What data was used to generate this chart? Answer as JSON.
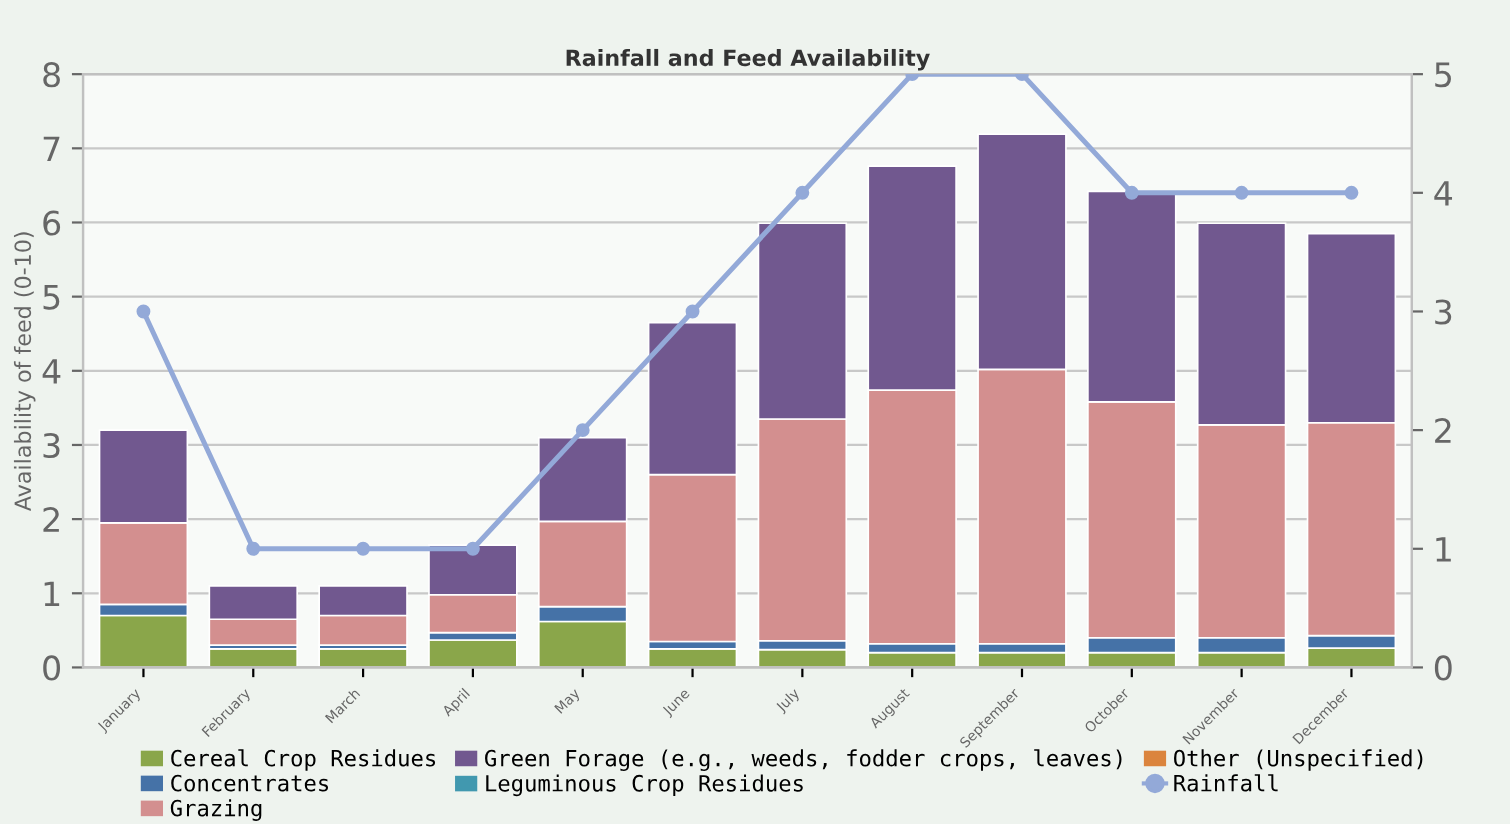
{
  "chart_data": {
    "type": "bar",
    "title": "Rainfall and Feed Availability",
    "ylabel": "Availability of feed (0-10)",
    "categories": [
      "January",
      "February",
      "March",
      "April",
      "May",
      "June",
      "July",
      "August",
      "September",
      "October",
      "November",
      "December"
    ],
    "stacked": true,
    "series": [
      {
        "name": "Cereal Crop Residues",
        "color": "#8aa64a",
        "values": [
          0.7,
          0.25,
          0.25,
          0.37,
          0.62,
          0.25,
          0.24,
          0.2,
          0.2,
          0.2,
          0.2,
          0.26
        ]
      },
      {
        "name": "Concentrates",
        "color": "#4572a7",
        "values": [
          0.15,
          0.05,
          0.05,
          0.1,
          0.2,
          0.1,
          0.12,
          0.12,
          0.12,
          0.2,
          0.2,
          0.17
        ]
      },
      {
        "name": "Grazing",
        "color": "#d38f8f",
        "values": [
          1.1,
          0.35,
          0.4,
          0.51,
          1.15,
          2.25,
          2.99,
          3.42,
          3.7,
          3.18,
          2.87,
          2.87
        ]
      },
      {
        "name": "Green Forage (e.g., weeds, fodder crops, leaves)",
        "color": "#71588f",
        "values": [
          1.25,
          0.45,
          0.4,
          0.67,
          1.13,
          2.05,
          2.64,
          3.02,
          3.17,
          2.84,
          2.72,
          2.55
        ]
      },
      {
        "name": "Leguminous Crop Residues",
        "color": "#4198af",
        "values": [
          0,
          0,
          0,
          0,
          0,
          0,
          0,
          0,
          0,
          0,
          0,
          0
        ]
      },
      {
        "name": "Other (Unspecified)",
        "color": "#db843d",
        "values": [
          0,
          0,
          0,
          0,
          0,
          0,
          0,
          0,
          0,
          0,
          0,
          0
        ]
      },
      {
        "name": "Rainfall",
        "type": "line",
        "axis": "y2",
        "color": "#93a9d8",
        "values": [
          3,
          1,
          1,
          1,
          2,
          3,
          4,
          5,
          5,
          4,
          4,
          4
        ]
      }
    ],
    "ylim": [
      0,
      8
    ],
    "yticks": [
      0,
      1,
      2,
      3,
      4,
      5,
      6,
      7,
      8
    ],
    "y2lim": [
      0,
      5
    ],
    "y2ticks": [
      0,
      1,
      2,
      3,
      4,
      5
    ],
    "grid": "y",
    "legend": "bottom",
    "marker": "circle"
  }
}
